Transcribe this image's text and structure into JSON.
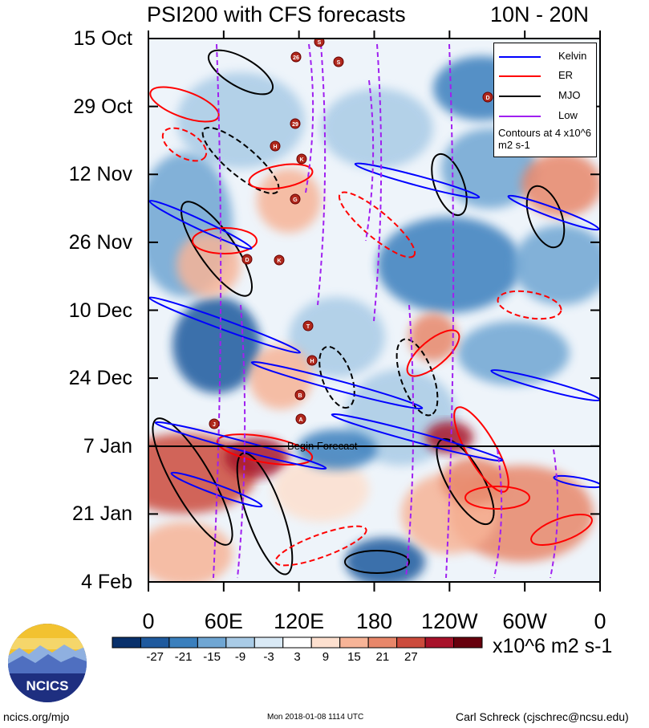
{
  "header": {
    "title": "PSI200 with CFS forecasts",
    "region": "10N - 20N"
  },
  "chart_data": {
    "type": "heatmap",
    "title": "PSI200 with CFS forecasts",
    "subtitle": "10N - 20N",
    "xlabels": [
      "0",
      "60E",
      "120E",
      "180",
      "120W",
      "60W",
      "0"
    ],
    "ylabels": [
      "15 Oct",
      "29 Oct",
      "12 Nov",
      "26 Nov",
      "10 Dec",
      "24 Dec",
      "7 Jan",
      "21 Jan",
      "4 Feb"
    ],
    "colorbar": {
      "ticks": [
        "-27",
        "-21",
        "-15",
        "-9",
        "-3",
        "3",
        "9",
        "15",
        "21",
        "27"
      ],
      "colors": [
        "#08306b",
        "#1f5a9e",
        "#3a7fbd",
        "#6fa6d3",
        "#a9cbe6",
        "#d9e9f5",
        "#ffffff",
        "#fde0cf",
        "#f7b497",
        "#e8876a",
        "#cc4b3c",
        "#a8122a",
        "#67000d"
      ],
      "units": "x10^6 m2 s-1"
    },
    "legend": [
      {
        "name": "Kelvin",
        "color": "#0000ff"
      },
      {
        "name": "ER",
        "color": "#ff0000"
      },
      {
        "name": "MJO",
        "color": "#000000"
      },
      {
        "name": "Low",
        "color": "#a020f0"
      }
    ],
    "legend_note": "Contours at 4 x10^6 m2 s-1",
    "forecast_label": "Begin Forecast",
    "storm_markers": [
      "26",
      "S",
      "S",
      "D",
      "29",
      "H",
      "K",
      "G",
      "D",
      "K",
      "T",
      "H",
      "B",
      "A",
      "J"
    ]
  },
  "logo": {
    "text": "NCICS"
  },
  "footer": {
    "left": "ncics.org/mjo",
    "center": "Mon 2018-01-08 1114 UTC",
    "right": "Carl Schreck (cjschrec@ncsu.edu)"
  }
}
